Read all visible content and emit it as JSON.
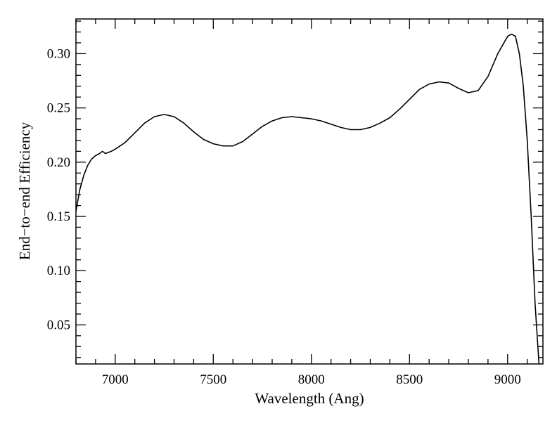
{
  "chart_data": {
    "type": "line",
    "xlabel": "Wavelength (Ang)",
    "ylabel": "End−to−end Efficiency",
    "xlim": [
      6800,
      9180
    ],
    "ylim": [
      0.014,
      0.332
    ],
    "xticks": [
      7000,
      7500,
      8000,
      8500,
      9000
    ],
    "xtick_labels": [
      "7000",
      "7500",
      "8000",
      "8500",
      "9000"
    ],
    "yticks": [
      0.05,
      0.1,
      0.15,
      0.2,
      0.25,
      0.3
    ],
    "ytick_labels": [
      "0.05",
      "0.10",
      "0.15",
      "0.20",
      "0.25",
      "0.30"
    ],
    "grid": false,
    "series": [
      {
        "color": "#000000",
        "x": [
          6800,
          6820,
          6840,
          6860,
          6880,
          6900,
          6920,
          6935,
          6950,
          6980,
          7000,
          7050,
          7100,
          7150,
          7200,
          7250,
          7300,
          7350,
          7400,
          7450,
          7500,
          7550,
          7600,
          7650,
          7700,
          7750,
          7800,
          7850,
          7900,
          7950,
          8000,
          8050,
          8100,
          8150,
          8200,
          8250,
          8300,
          8350,
          8400,
          8450,
          8500,
          8550,
          8600,
          8650,
          8700,
          8750,
          8800,
          8850,
          8900,
          8950,
          9000,
          9020,
          9040,
          9060,
          9080,
          9100,
          9120,
          9140,
          9160
        ],
        "y": [
          0.155,
          0.175,
          0.188,
          0.197,
          0.203,
          0.206,
          0.208,
          0.21,
          0.208,
          0.21,
          0.212,
          0.218,
          0.227,
          0.236,
          0.242,
          0.244,
          0.242,
          0.236,
          0.228,
          0.221,
          0.217,
          0.215,
          0.215,
          0.219,
          0.226,
          0.233,
          0.238,
          0.241,
          0.242,
          0.241,
          0.24,
          0.238,
          0.235,
          0.232,
          0.23,
          0.23,
          0.232,
          0.236,
          0.241,
          0.249,
          0.258,
          0.267,
          0.272,
          0.274,
          0.273,
          0.268,
          0.264,
          0.266,
          0.279,
          0.3,
          0.316,
          0.318,
          0.316,
          0.3,
          0.27,
          0.22,
          0.15,
          0.07,
          0.01
        ]
      }
    ]
  }
}
